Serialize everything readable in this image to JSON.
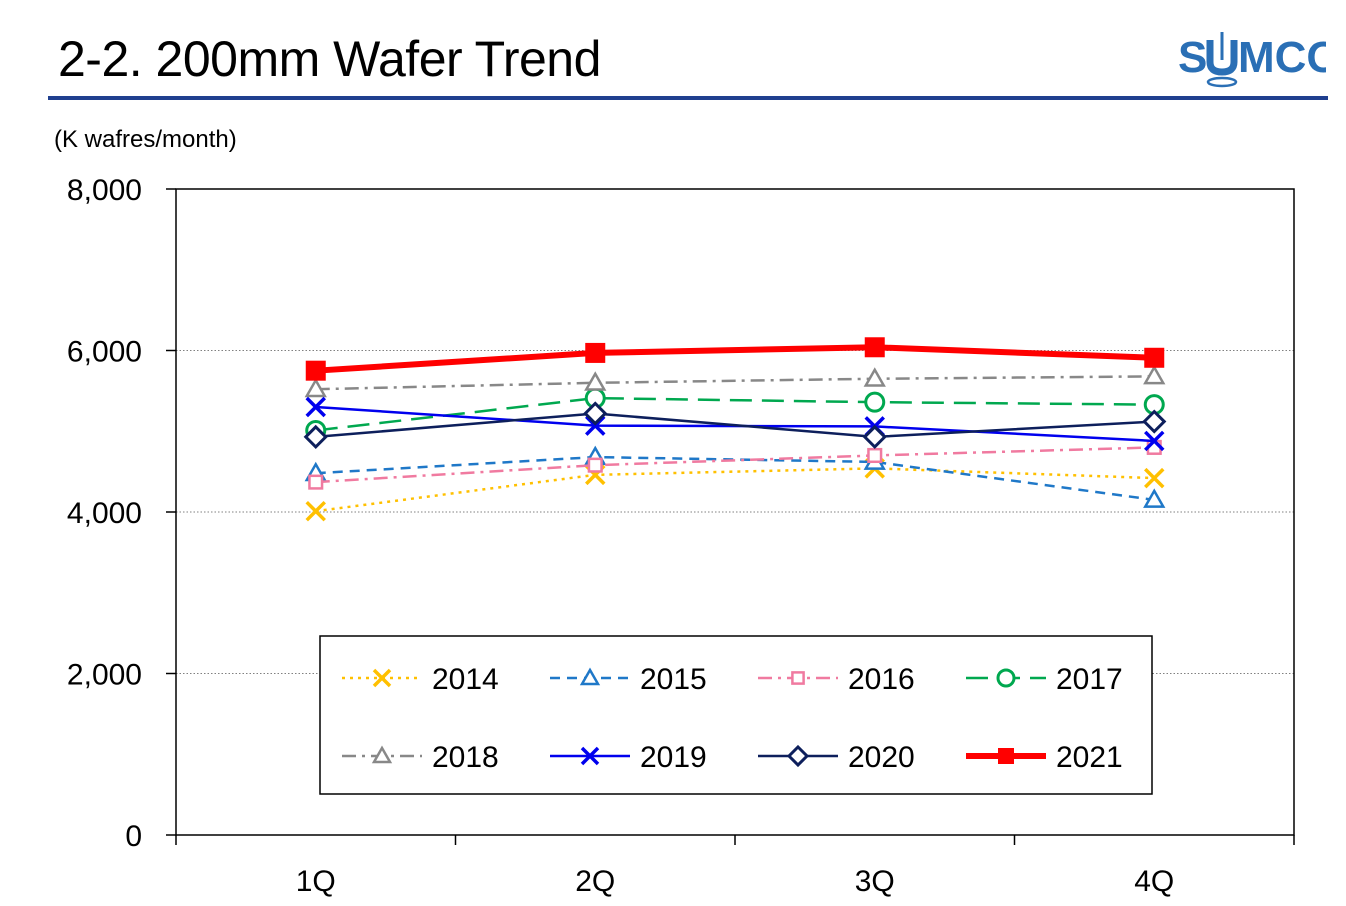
{
  "header": {
    "title": "2-2. 200mm Wafer Trend",
    "logo_text_left": "S",
    "logo_text_right": "MCO",
    "rule_color": "#1f3f8f",
    "logo_color": "#2a6fb5"
  },
  "chart_data": {
    "type": "line",
    "ylabel": "(K wafres/month)",
    "categories": [
      "1Q",
      "2Q",
      "3Q",
      "4Q"
    ],
    "ylim": [
      0,
      8000
    ],
    "yticks": [
      0,
      2000,
      4000,
      6000,
      8000
    ],
    "ytick_labels": [
      "0",
      "2,000",
      "4,000",
      "6,000",
      "8,000"
    ],
    "grid": "horizontal dotted",
    "legend": "bottom-center inside plot, 4 columns",
    "series": [
      {
        "name": "2014",
        "values": [
          4010,
          4460,
          4540,
          4420
        ],
        "color": "#ffc000",
        "marker": "x",
        "dash": "dotted"
      },
      {
        "name": "2015",
        "values": [
          4480,
          4680,
          4620,
          4150
        ],
        "color": "#1f78c8",
        "marker": "triangle-open",
        "dash": "dashed"
      },
      {
        "name": "2016",
        "values": [
          4370,
          4580,
          4700,
          4800
        ],
        "color": "#f07aa0",
        "marker": "square-open",
        "dash": "dashdot"
      },
      {
        "name": "2017",
        "values": [
          5010,
          5410,
          5360,
          5330
        ],
        "color": "#00a84f",
        "marker": "circle-open",
        "dash": "longdash"
      },
      {
        "name": "2018",
        "values": [
          5520,
          5600,
          5650,
          5680
        ],
        "color": "#888888",
        "marker": "triangle-open",
        "dash": "dashdot"
      },
      {
        "name": "2019",
        "values": [
          5300,
          5070,
          5060,
          4880
        ],
        "color": "#0000ee",
        "marker": "x",
        "dash": "solid"
      },
      {
        "name": "2020",
        "values": [
          4930,
          5220,
          4930,
          5120
        ],
        "color": "#0d1f5c",
        "marker": "diamond-open",
        "dash": "solid"
      },
      {
        "name": "2021",
        "values": [
          5750,
          5970,
          6040,
          5910
        ],
        "color": "#ff0000",
        "marker": "square-filled",
        "dash": "solid-thick"
      }
    ]
  }
}
